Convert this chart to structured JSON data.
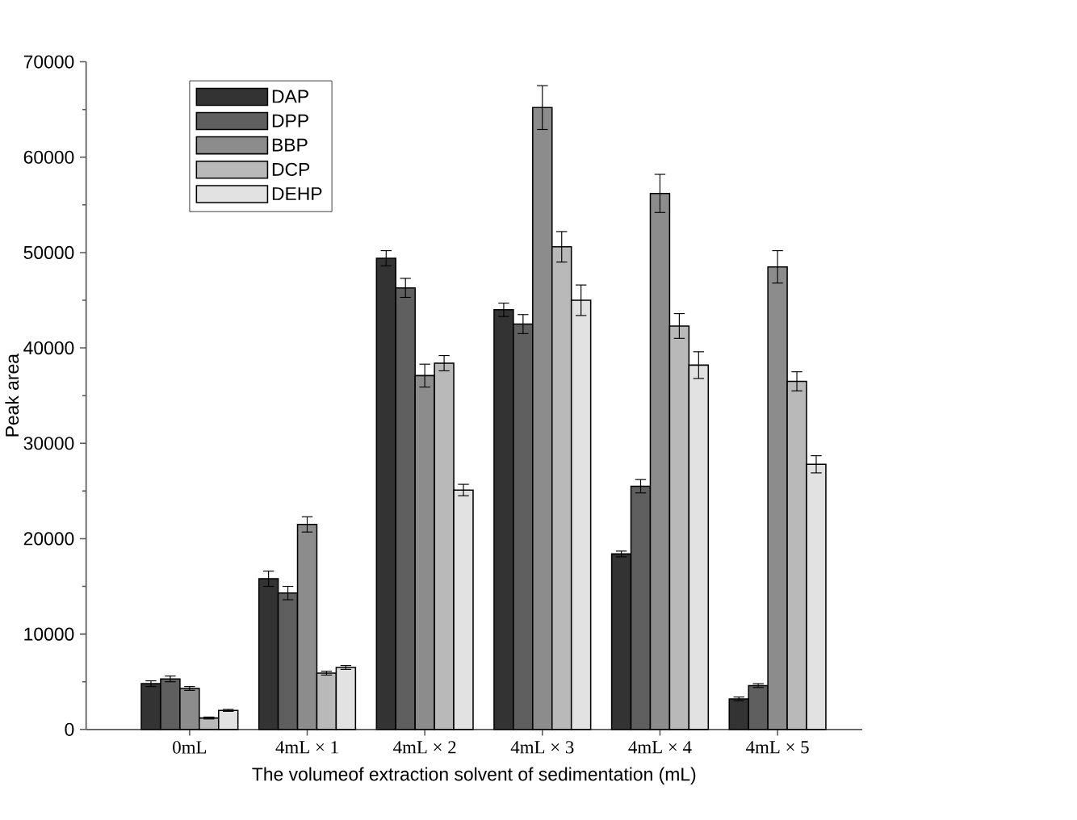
{
  "chart_data": {
    "type": "bar",
    "xlabel": "The volumeof extraction solvent of sedimentation (mL)",
    "ylabel": "Peak area",
    "categories": [
      "0mL",
      "4mL × 1",
      "4mL × 2",
      "4mL × 3",
      "4mL × 4",
      "4mL × 5"
    ],
    "series": [
      {
        "name": "DAP",
        "color": "#333333",
        "values": [
          4800,
          15800,
          49400,
          44000,
          18400,
          3200
        ],
        "errors": [
          300,
          800,
          800,
          700,
          300,
          200
        ]
      },
      {
        "name": "DPP",
        "color": "#5f5f5f",
        "values": [
          5300,
          14300,
          46300,
          42500,
          25500,
          4600
        ],
        "errors": [
          300,
          700,
          1000,
          1000,
          700,
          200
        ]
      },
      {
        "name": "BBP",
        "color": "#8c8c8c",
        "values": [
          4300,
          21500,
          37100,
          65200,
          56200,
          48500
        ],
        "errors": [
          200,
          800,
          1200,
          2300,
          2000,
          1700
        ]
      },
      {
        "name": "DCP",
        "color": "#b9b9b9",
        "values": [
          1200,
          5900,
          38400,
          50600,
          42300,
          36500
        ],
        "errors": [
          100,
          200,
          800,
          1600,
          1300,
          1000
        ]
      },
      {
        "name": "DEHP",
        "color": "#e2e2e2",
        "values": [
          2000,
          6500,
          25100,
          45000,
          38200,
          27800
        ],
        "errors": [
          100,
          200,
          600,
          1600,
          1400,
          900
        ]
      }
    ],
    "ylim": [
      0,
      70000
    ],
    "yticks": [
      0,
      10000,
      20000,
      30000,
      40000,
      50000,
      60000,
      70000
    ],
    "legend": "top left"
  }
}
